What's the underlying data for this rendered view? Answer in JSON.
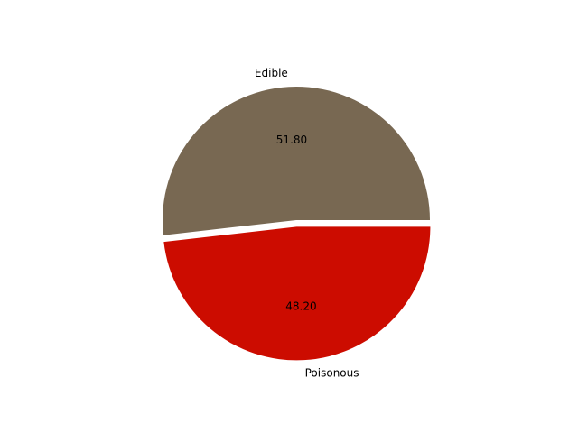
{
  "chart_data": {
    "type": "pie",
    "title": "",
    "slices": [
      {
        "label": "Edible",
        "value": 51.8,
        "pct_label": "51.80",
        "color": "#786852",
        "explode": 0.0
      },
      {
        "label": "Poisonous",
        "value": 48.2,
        "pct_label": "48.20",
        "color": "#cc0c00",
        "explode": 0.05
      }
    ],
    "start_angle_deg": 0,
    "counterclockwise": true,
    "legend": "none"
  }
}
